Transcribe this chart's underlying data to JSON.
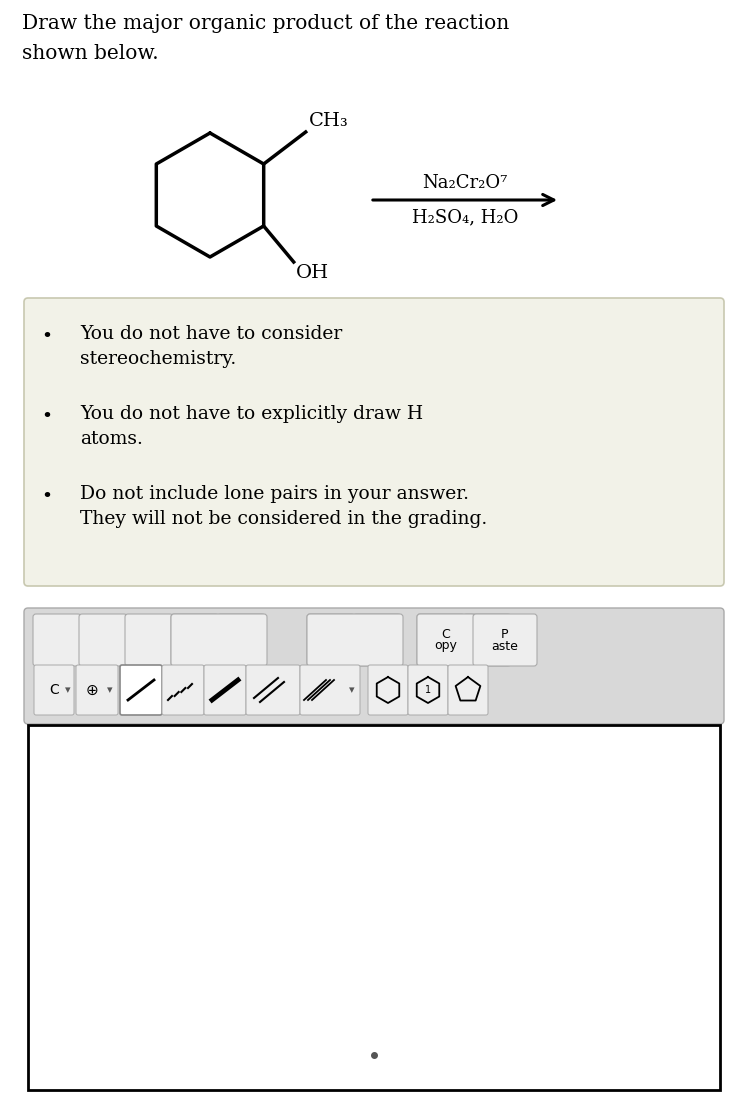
{
  "title_line1": "Draw the major organic product of the reaction",
  "title_line2": "shown below.",
  "title_fontsize": 14.5,
  "bg_color": "#ffffff",
  "bullet_box_color": "#f2f2e8",
  "bullet_box_border": "#c8c8b0",
  "bullets": [
    "You do not have to consider\nstereochemistry.",
    "You do not have to explicitly draw H\natoms.",
    "Do not include lone pairs in your answer.\nThey will not be considered in the grading."
  ],
  "reagent_line1": "Na₂Cr₂O⁷",
  "reagent_line2": "H₂SO₄, H₂O",
  "ch3_label": "CH₃",
  "oh_label": "OH",
  "toolbar_bg": "#d8d8d8",
  "drawing_area_bg": "#ffffff",
  "drawing_area_border": "#000000",
  "font_size_reagent": 13,
  "font_size_bullet": 13.5
}
